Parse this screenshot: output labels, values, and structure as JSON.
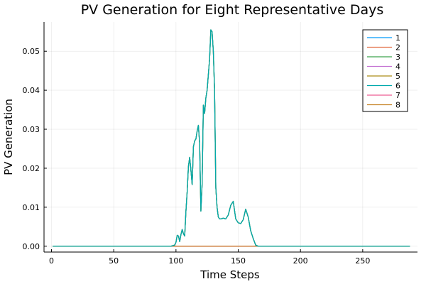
{
  "chart_data": {
    "type": "line",
    "title": "PV Generation for Eight Representative Days",
    "xlabel": "Time Steps",
    "ylabel": "PV Generation",
    "xlim": [
      -6,
      294
    ],
    "ylim": [
      -0.0015,
      0.0575
    ],
    "xticks": [
      0,
      50,
      100,
      150,
      200,
      250
    ],
    "xtick_labels": [
      "0",
      "50",
      "100",
      "150",
      "200",
      "250"
    ],
    "yticks": [
      0,
      0.01,
      0.02,
      0.03,
      0.04,
      0.05
    ],
    "ytick_labels": [
      "0.00",
      "0.01",
      "0.02",
      "0.03",
      "0.04",
      "0.05"
    ],
    "grid": true,
    "legend_position": "top-right",
    "series_base": {
      "x": [
        1,
        90,
        96,
        99,
        100,
        101,
        102,
        103,
        104,
        105,
        106,
        107,
        108,
        109,
        110,
        111,
        112,
        113,
        114,
        115,
        116,
        117,
        118,
        119,
        120,
        121,
        122,
        123,
        124,
        125,
        126,
        127,
        128,
        129,
        130,
        131,
        132,
        133,
        134,
        135,
        136,
        138,
        140,
        142,
        144,
        146,
        148,
        150,
        152,
        154,
        156,
        158,
        160,
        162,
        164,
        166,
        170,
        200,
        250,
        288
      ],
      "y": [
        0,
        0,
        0,
        0.0003,
        0.001,
        0.0028,
        0.0026,
        0.0012,
        0.003,
        0.0043,
        0.0032,
        0.0026,
        0.009,
        0.014,
        0.0205,
        0.0228,
        0.0195,
        0.0158,
        0.0255,
        0.027,
        0.0275,
        0.0295,
        0.031,
        0.0265,
        0.009,
        0.016,
        0.0362,
        0.034,
        0.038,
        0.04,
        0.044,
        0.048,
        0.0555,
        0.055,
        0.05,
        0.04,
        0.015,
        0.01,
        0.0075,
        0.007,
        0.007,
        0.0072,
        0.007,
        0.008,
        0.0105,
        0.0115,
        0.007,
        0.006,
        0.0058,
        0.0068,
        0.0095,
        0.0075,
        0.004,
        0.002,
        0.0003,
        0,
        0,
        0,
        0,
        0
      ]
    },
    "series": [
      {
        "name": "1",
        "color": "#009AFA",
        "peak_scale": 1.0
      },
      {
        "name": "2",
        "color": "#E36F47",
        "peak_scale": 0.0
      },
      {
        "name": "3",
        "color": "#3EA44E",
        "peak_scale": 1.0
      },
      {
        "name": "4",
        "color": "#C371D2",
        "peak_scale": 0.0
      },
      {
        "name": "5",
        "color": "#AC8E18",
        "peak_scale": 1.0
      },
      {
        "name": "6",
        "color": "#00A9AD",
        "peak_scale": 1.0
      },
      {
        "name": "7",
        "color": "#ED5E93",
        "peak_scale": 0.0
      },
      {
        "name": "8",
        "color": "#C68225",
        "peak_scale": 0.0
      }
    ]
  }
}
